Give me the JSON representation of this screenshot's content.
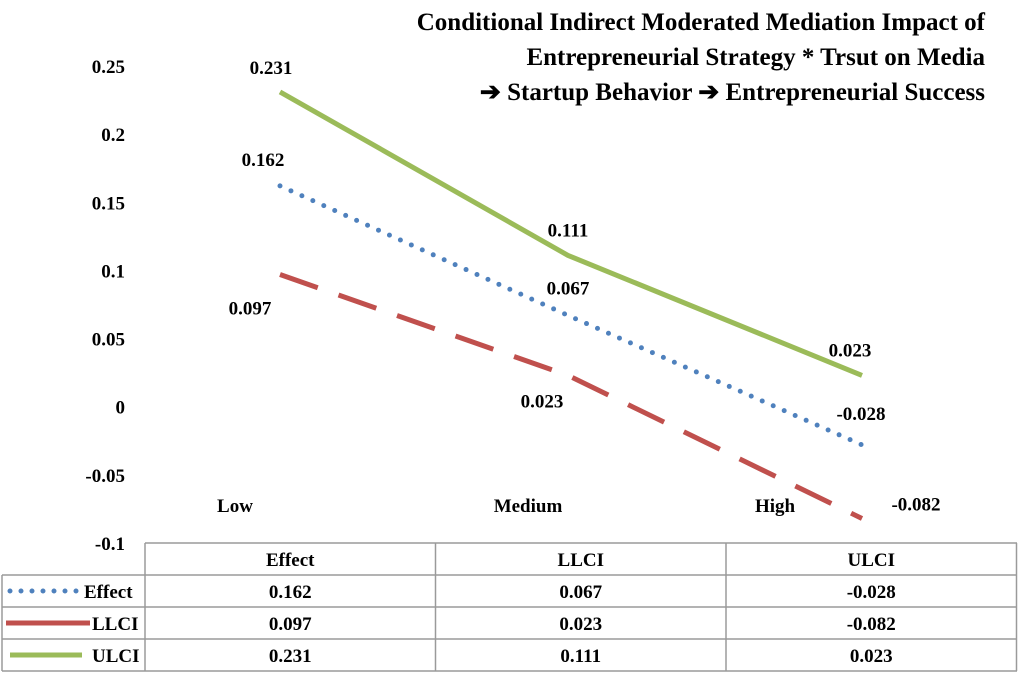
{
  "chart_data": {
    "type": "line",
    "title_lines": [
      "Conditional Indirect Moderated Mediation Impact of",
      "Entrepreneurial Strategy * Trsut on Media",
      "➔ Startup Behavior ➔ Entrepreneurial Success"
    ],
    "categories": [
      "Low",
      "Medium",
      "High"
    ],
    "ylim": [
      -0.1,
      0.25
    ],
    "yticks": [
      {
        "value": 0.25,
        "label": "0.25"
      },
      {
        "value": 0.2,
        "label": "0.2"
      },
      {
        "value": 0.15,
        "label": "0.15"
      },
      {
        "value": 0.1,
        "label": "0.1"
      },
      {
        "value": 0.05,
        "label": "0.05"
      },
      {
        "value": 0,
        "label": "0"
      },
      {
        "value": -0.05,
        "label": "-0.05"
      },
      {
        "value": -0.1,
        "label": "-0.1"
      }
    ],
    "series": [
      {
        "name": "Effect",
        "style": "dotted",
        "color": "#4f81bd",
        "values": [
          0.162,
          0.067,
          -0.028
        ],
        "labels": [
          "0.162",
          "0.067",
          "-0.028"
        ]
      },
      {
        "name": "LLCI",
        "style": "dashed",
        "color": "#c0504d",
        "values": [
          0.097,
          0.023,
          -0.082
        ],
        "labels": [
          "0.097",
          "0.023",
          "-0.082"
        ]
      },
      {
        "name": "ULCI",
        "style": "solid",
        "color": "#9bbb59",
        "values": [
          0.231,
          0.111,
          0.023
        ],
        "labels": [
          "0.231",
          "0.111",
          "0.023"
        ]
      }
    ],
    "table": {
      "headers": [
        "Effect",
        "LLCI",
        "ULCI"
      ],
      "rows": [
        {
          "name": "Effect",
          "cells": [
            "0.162",
            "0.067",
            "-0.028"
          ]
        },
        {
          "name": "LLCI",
          "cells": [
            "0.097",
            "0.023",
            "-0.082"
          ]
        },
        {
          "name": "ULCI",
          "cells": [
            "0.231",
            "0.111",
            "0.023"
          ]
        }
      ]
    }
  }
}
